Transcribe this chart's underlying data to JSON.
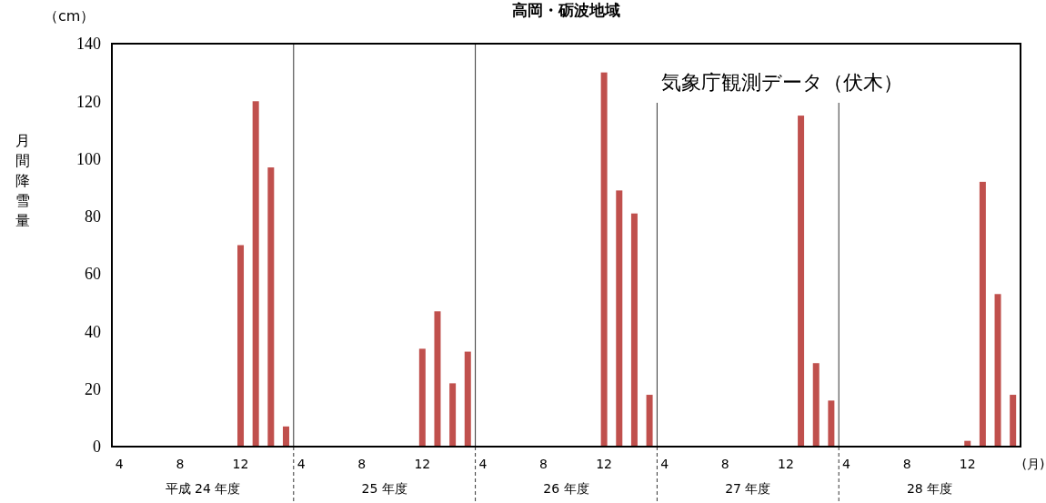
{
  "chart_data": {
    "type": "bar",
    "title": "高岡・砺波地域",
    "ylabel": "月間降雪量",
    "annotations": [
      "（cm）",
      "気象庁観測データ（伏木）",
      "(月)",
      "平成 24 年度",
      "25 年度",
      "26 年度",
      "27 年度",
      "28 年度"
    ],
    "categories": [
      "4",
      null,
      null,
      null,
      "8",
      null,
      null,
      null,
      "12",
      null,
      null,
      null,
      "4",
      null,
      null,
      null,
      "8",
      null,
      null,
      null,
      "12",
      null,
      null,
      null,
      "4",
      null,
      null,
      null,
      "8",
      null,
      null,
      null,
      "12",
      null,
      null,
      null,
      "4",
      null,
      null,
      null,
      "8",
      null,
      null,
      null,
      "12",
      null,
      null,
      null,
      "4",
      null,
      null,
      null,
      "8",
      null,
      null,
      null,
      "12",
      null,
      null,
      null
    ],
    "series": [
      {
        "color": "#c0504d",
        "values": [
          0,
          0,
          0,
          0,
          0,
          0,
          0,
          0,
          70,
          120,
          97,
          7,
          0,
          0,
          0,
          0,
          0,
          0,
          0,
          0,
          34,
          47,
          22,
          33,
          0,
          0,
          0,
          0,
          0,
          0,
          0,
          0,
          130,
          89,
          81,
          18,
          0,
          0,
          0,
          0,
          0,
          0,
          0,
          0,
          0,
          115,
          29,
          16,
          0,
          0,
          0,
          0,
          0,
          0,
          0,
          0,
          2,
          92,
          53,
          18
        ]
      }
    ],
    "ylim": [
      0,
      140
    ],
    "yticks": [
      0,
      20,
      40,
      60,
      80,
      100,
      120,
      140
    ]
  }
}
